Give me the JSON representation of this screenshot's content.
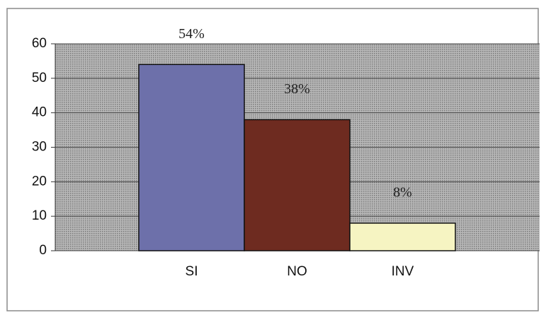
{
  "chart_data": {
    "type": "bar",
    "categories": [
      "SI",
      "NO",
      "INV"
    ],
    "values": [
      54,
      38,
      8
    ],
    "value_labels": [
      "54%",
      "38%",
      "8%"
    ],
    "colors": [
      "#6d70aa",
      "#6e2b20",
      "#f6f4c2"
    ],
    "ylim": [
      0,
      60
    ],
    "yticks": [
      0,
      10,
      20,
      30,
      40,
      50,
      60
    ],
    "grid": true
  }
}
